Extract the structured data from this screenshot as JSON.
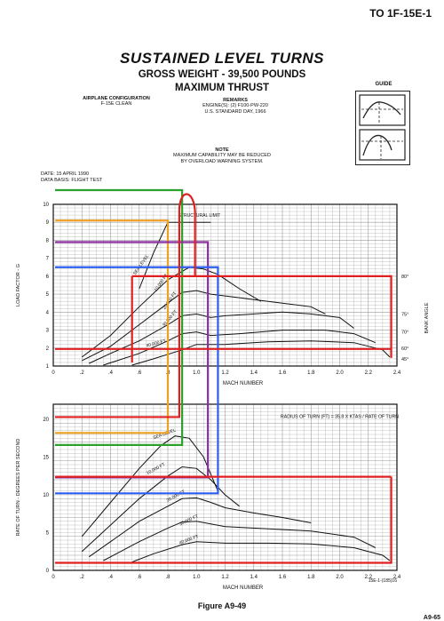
{
  "header": {
    "doc_id": "TO 1F-15E-1",
    "title": "SUSTAINED LEVEL TURNS",
    "subtitle1": "GROSS WEIGHT - 39,500 POUNDS",
    "subtitle2": "MAXIMUM THRUST",
    "config_title": "AIRPLANE CONFIGURATION",
    "config_value": "F-15E CLEAN",
    "remarks_title": "REMARKS",
    "remarks_line1": "ENGINE(S): (2) F100-PW-220",
    "remarks_line2": "U.S. STANDARD DAY, 1966",
    "note_title": "NOTE",
    "note_line1": "MAXIMUM CAPABILITY MAY BE REDUCED",
    "note_line2": "BY OVERLOAD WARNING SYSTEM.",
    "date_line": "DATE: 15 APRIL 1990",
    "basis_line": "DATA BASIS: FLIGHT TEST",
    "guide_label": "GUIDE"
  },
  "footer": {
    "figure": "Figure A9-49",
    "code": "15E-1-(185)16",
    "page": "A9-65"
  },
  "colors": {
    "green": "#2ca02c",
    "orange": "#f0a020",
    "purple": "#8a2ea0",
    "blue": "#2d5ff0",
    "red": "#e02020",
    "grid": "#9a9a9a",
    "curve": "#111111"
  },
  "chart_data": [
    {
      "type": "line",
      "xlabel": "MACH NUMBER",
      "ylabel": "LOAD FACTOR - G",
      "y2label": "BANK ANGLE",
      "xlim": [
        0,
        2.4
      ],
      "ylim": [
        1,
        10
      ],
      "xticks": [
        "0",
        ".2",
        ".4",
        ".6",
        ".8",
        "1.0",
        "1.2",
        "1.4",
        "1.6",
        "1.8",
        "2.0",
        "2.2",
        "2.4"
      ],
      "yticks": [
        "1",
        "2",
        "3",
        "4",
        "5",
        "6",
        "7",
        "8",
        "9",
        "10"
      ],
      "y2ticks": [
        "80°",
        "75°",
        "70°",
        "60°",
        "45°"
      ],
      "annotations": [
        "STRUCTURAL LIMIT",
        "SEA LEVEL",
        "10,000 FT",
        "20,000 FT",
        "30,000 FT",
        "40,000 FT"
      ],
      "series": [
        {
          "name": "STRUCTURAL LIMIT",
          "x": [
            0.6,
            0.7,
            0.8,
            0.9,
            1.0,
            1.1
          ],
          "y": [
            5.3,
            7.3,
            9.0,
            9.0,
            9.0,
            9.0
          ]
        },
        {
          "name": "SEA LEVEL",
          "x": [
            0.2,
            0.4,
            0.6,
            0.8,
            0.95,
            1.05,
            1.15,
            1.3,
            1.45
          ],
          "y": [
            1.5,
            2.7,
            4.3,
            5.8,
            6.5,
            6.4,
            6.1,
            5.3,
            4.6
          ]
        },
        {
          "name": "10,000 FT",
          "x": [
            0.2,
            0.4,
            0.6,
            0.8,
            0.9,
            1.0,
            1.1,
            1.2,
            1.4,
            1.6,
            1.8,
            1.9
          ],
          "y": [
            1.3,
            2.1,
            3.3,
            4.5,
            5.1,
            5.2,
            5.0,
            4.9,
            4.7,
            4.5,
            4.3,
            3.9
          ]
        },
        {
          "name": "20,000 FT",
          "x": [
            0.25,
            0.4,
            0.6,
            0.8,
            0.9,
            1.0,
            1.1,
            1.2,
            1.4,
            1.6,
            1.8,
            2.0,
            2.1
          ],
          "y": [
            1.15,
            1.7,
            2.4,
            3.3,
            3.8,
            3.9,
            3.7,
            3.8,
            3.9,
            4.0,
            3.9,
            3.7,
            3.1
          ]
        },
        {
          "name": "30,000 FT",
          "x": [
            0.35,
            0.6,
            0.8,
            0.9,
            1.0,
            1.1,
            1.3,
            1.6,
            1.9,
            2.1,
            2.25
          ],
          "y": [
            1.05,
            1.7,
            2.4,
            2.8,
            2.9,
            2.7,
            2.8,
            3.0,
            3.0,
            2.8,
            2.3
          ]
        },
        {
          "name": "40,000 FT",
          "x": [
            0.55,
            0.7,
            0.9,
            1.0,
            1.2,
            1.5,
            1.8,
            2.1,
            2.3,
            2.35
          ],
          "y": [
            1.05,
            1.4,
            1.9,
            2.2,
            2.2,
            2.35,
            2.4,
            2.3,
            1.9,
            1.5
          ]
        }
      ]
    },
    {
      "type": "line",
      "xlabel": "MACH NUMBER",
      "ylabel": "RATE OF TURN - DEGREES PER SECOND",
      "xlim": [
        0,
        2.4
      ],
      "ylim": [
        0,
        22
      ],
      "xticks": [
        "0",
        ".2",
        ".4",
        ".6",
        ".8",
        "1.0",
        "1.2",
        "1.4",
        "1.6",
        "1.8",
        "2.0",
        "2.2",
        "2.4"
      ],
      "yticks": [
        "0",
        "5",
        "10",
        "15",
        "20"
      ],
      "annotation_text": "RADIUS OF TURN (FT) = 35.8 X KTAS / RATE OF TURN",
      "annotations": [
        "SEA LEVEL",
        "10,000 FT",
        "20,000 FT",
        "30,000 FT",
        "40,000 FT"
      ],
      "series": [
        {
          "name": "SEA LEVEL",
          "x": [
            0.2,
            0.4,
            0.6,
            0.75,
            0.85,
            0.95,
            1.05,
            1.15
          ],
          "y": [
            4.5,
            9.0,
            13.5,
            16.5,
            17.8,
            17.5,
            15.0,
            10.5
          ]
        },
        {
          "name": "10,000 FT",
          "x": [
            0.2,
            0.4,
            0.6,
            0.8,
            0.9,
            1.0,
            1.1,
            1.2,
            1.3
          ],
          "y": [
            2.5,
            6.0,
            9.5,
            12.5,
            13.7,
            13.5,
            12.0,
            10.0,
            8.5
          ]
        },
        {
          "name": "20,000 FT",
          "x": [
            0.25,
            0.4,
            0.6,
            0.8,
            0.9,
            1.0,
            1.1,
            1.2,
            1.4,
            1.6,
            1.8
          ],
          "y": [
            1.8,
            3.8,
            6.5,
            8.5,
            9.5,
            9.6,
            9.0,
            8.3,
            7.6,
            7.0,
            6.3
          ]
        },
        {
          "name": "30,000 FT",
          "x": [
            0.35,
            0.6,
            0.8,
            0.9,
            1.0,
            1.2,
            1.5,
            1.8,
            2.1,
            2.25
          ],
          "y": [
            1.3,
            3.8,
            5.6,
            6.4,
            6.5,
            5.8,
            5.5,
            5.2,
            4.4,
            3.0
          ]
        },
        {
          "name": "40,000 FT",
          "x": [
            0.55,
            0.7,
            0.9,
            1.0,
            1.2,
            1.5,
            1.8,
            2.1,
            2.3,
            2.35
          ],
          "y": [
            1.1,
            2.2,
            3.4,
            3.8,
            3.6,
            3.6,
            3.5,
            3.0,
            2.0,
            1.3
          ]
        }
      ]
    }
  ]
}
